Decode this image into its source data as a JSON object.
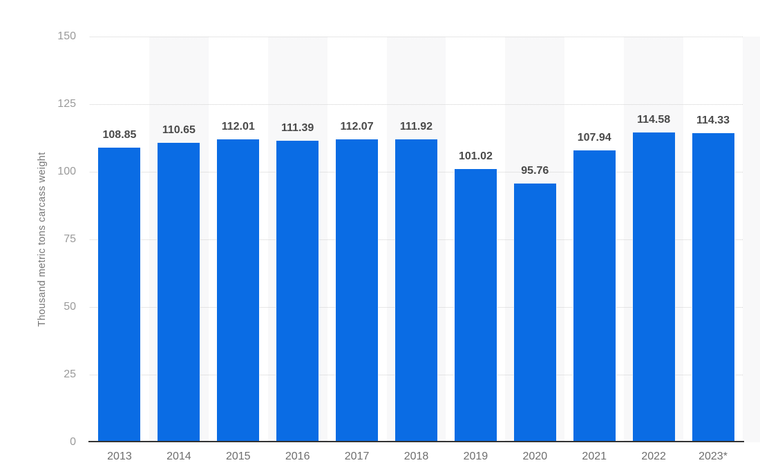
{
  "chart_data": {
    "type": "bar",
    "title": "",
    "xlabel": "",
    "ylabel": "Thousand metric tons carcass weight",
    "categories": [
      "2013",
      "2014",
      "2015",
      "2016",
      "2017",
      "2018",
      "2019",
      "2020",
      "2021",
      "2022",
      "2023*"
    ],
    "values": [
      108.85,
      110.65,
      112.01,
      111.39,
      112.07,
      111.92,
      101.02,
      95.76,
      107.94,
      114.58,
      114.33
    ],
    "value_labels": [
      "108.85",
      "110.65",
      "112.01",
      "111.39",
      "112.07",
      "111.92",
      "101.02",
      "95.76",
      "107.94",
      "114.58",
      "114.33"
    ],
    "ylim": [
      0,
      150
    ],
    "yticks": [
      0,
      25,
      50,
      75,
      100,
      125,
      150
    ],
    "grid": "horizontal dotted lines at 25-unit intervals, no line at 0",
    "legend": "none",
    "background_stripes": "alternating light-gray vertical bands behind even-index columns and partial band at right edge",
    "bar_color": "#0a6ce4",
    "stripe_color": "#f8f8f9",
    "gridline_color": "#cfcfcf",
    "axis_line_color": "#333333",
    "value_label_color": "#4a4a4a",
    "y_tick_color": "#9a9a9a",
    "x_tick_color": "#6e6e6e",
    "ylabel_color": "#767676"
  }
}
